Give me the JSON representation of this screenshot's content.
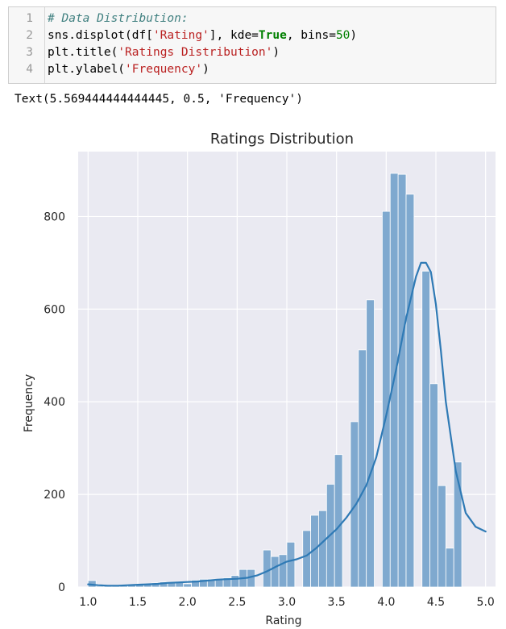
{
  "code_cell": {
    "lines": [
      {
        "num": "1",
        "parts": [
          {
            "cls": "c-comment",
            "text": "# Data Distribution:"
          }
        ]
      },
      {
        "num": "2",
        "parts": [
          {
            "cls": "c-txt",
            "text": "sns.displot(df["
          },
          {
            "cls": "c-str",
            "text": "'Rating'"
          },
          {
            "cls": "c-txt",
            "text": "], kde="
          },
          {
            "cls": "c-kw",
            "text": "True"
          },
          {
            "cls": "c-txt",
            "text": ", bins="
          },
          {
            "cls": "c-num",
            "text": "50"
          },
          {
            "cls": "c-txt",
            "text": ")"
          }
        ]
      },
      {
        "num": "3",
        "parts": [
          {
            "cls": "c-txt",
            "text": "plt.title("
          },
          {
            "cls": "c-str",
            "text": "'Ratings Distribution'"
          },
          {
            "cls": "c-txt",
            "text": ")"
          }
        ]
      },
      {
        "num": "4",
        "parts": [
          {
            "cls": "c-txt",
            "text": "plt.ylabel("
          },
          {
            "cls": "c-str",
            "text": "'Frequency'"
          },
          {
            "cls": "c-txt",
            "text": ")"
          }
        ]
      }
    ]
  },
  "output_text": "Text(5.569444444444445, 0.5, 'Frequency')",
  "chart_data": {
    "type": "bar",
    "title": "Ratings Distribution",
    "xlabel": "Rating",
    "ylabel": "Frequency",
    "xlim": [
      0.9,
      5.1
    ],
    "ylim": [
      0,
      940
    ],
    "xticks": [
      1.0,
      1.5,
      2.0,
      2.5,
      3.0,
      3.5,
      4.0,
      4.5,
      5.0
    ],
    "xtick_labels": [
      "1.0",
      "1.5",
      "2.0",
      "2.5",
      "3.0",
      "3.5",
      "4.0",
      "4.5",
      "5.0"
    ],
    "yticks": [
      0,
      200,
      400,
      600,
      800
    ],
    "ytick_labels": [
      "0",
      "200",
      "400",
      "600",
      "800"
    ],
    "grid": true,
    "bar_color": "#7fa9cf",
    "kde_color": "#2f7ab5",
    "background": "#eaeaf2",
    "bin_start": 1.0,
    "bin_width": 0.08,
    "bars": [
      14,
      2,
      3,
      3,
      3,
      5,
      6,
      7,
      9,
      11,
      11,
      10,
      7,
      15,
      17,
      17,
      17,
      20,
      25,
      38,
      38,
      0,
      80,
      66,
      70,
      97,
      0,
      122,
      155,
      165,
      222,
      286,
      0,
      357,
      512,
      620,
      0,
      811,
      893,
      891,
      848,
      0,
      682,
      439,
      219,
      84,
      270,
      0,
      0,
      0
    ],
    "kde": [
      [
        1.0,
        6
      ],
      [
        1.1,
        4
      ],
      [
        1.2,
        3
      ],
      [
        1.3,
        3
      ],
      [
        1.4,
        4
      ],
      [
        1.5,
        5
      ],
      [
        1.6,
        6
      ],
      [
        1.7,
        7
      ],
      [
        1.8,
        9
      ],
      [
        1.9,
        10
      ],
      [
        2.0,
        11
      ],
      [
        2.1,
        12
      ],
      [
        2.2,
        14
      ],
      [
        2.3,
        16
      ],
      [
        2.4,
        17
      ],
      [
        2.5,
        18
      ],
      [
        2.6,
        20
      ],
      [
        2.7,
        25
      ],
      [
        2.8,
        34
      ],
      [
        2.9,
        45
      ],
      [
        3.0,
        55
      ],
      [
        3.1,
        60
      ],
      [
        3.2,
        68
      ],
      [
        3.3,
        85
      ],
      [
        3.4,
        105
      ],
      [
        3.5,
        125
      ],
      [
        3.6,
        150
      ],
      [
        3.7,
        180
      ],
      [
        3.8,
        220
      ],
      [
        3.9,
        280
      ],
      [
        4.0,
        370
      ],
      [
        4.1,
        470
      ],
      [
        4.2,
        580
      ],
      [
        4.3,
        670
      ],
      [
        4.35,
        700
      ],
      [
        4.4,
        700
      ],
      [
        4.45,
        680
      ],
      [
        4.5,
        610
      ],
      [
        4.55,
        510
      ],
      [
        4.6,
        400
      ],
      [
        4.7,
        250
      ],
      [
        4.8,
        160
      ],
      [
        4.9,
        130
      ],
      [
        5.0,
        120
      ]
    ]
  }
}
